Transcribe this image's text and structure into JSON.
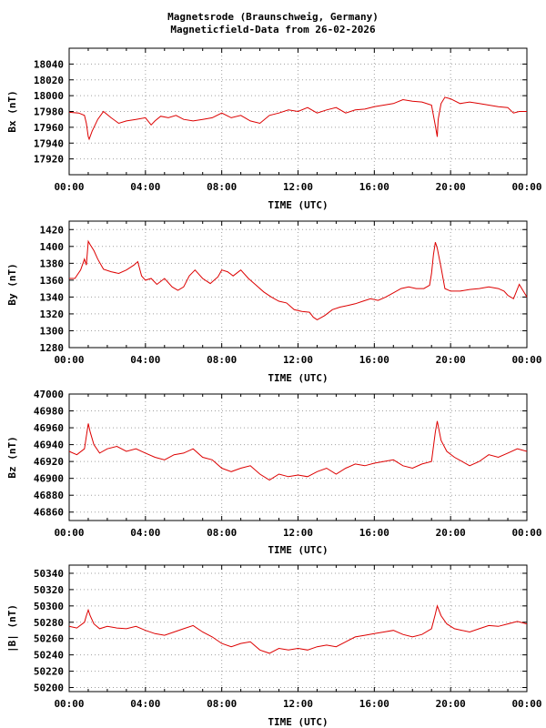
{
  "title_line1": "Magnetsrode (Braunschweig, Germany)",
  "title_line2": "Magneticfield-Data from 26-02-2026",
  "series_color": "#dd0000",
  "chart_data": [
    {
      "type": "line",
      "ylabel": "Bx (nT)",
      "xlabel": "TIME (UTC)",
      "xlim": [
        0,
        24
      ],
      "ylim": [
        17900,
        18060
      ],
      "yticks": [
        17920,
        17940,
        17960,
        17980,
        18000,
        18020,
        18040
      ],
      "xtick_labels": [
        "00:00",
        "04:00",
        "08:00",
        "12:00",
        "16:00",
        "20:00",
        "00:00"
      ],
      "series": [
        {
          "x": [
            0,
            0.5,
            0.8,
            0.9,
            1.0,
            1.05,
            1.2,
            1.5,
            1.8,
            2.2,
            2.6,
            3.0,
            3.5,
            4.0,
            4.3,
            4.5,
            4.8,
            5.2,
            5.6,
            6.0,
            6.5,
            7.0,
            7.5,
            8.0,
            8.5,
            9.0,
            9.5,
            10.0,
            10.5,
            11.0,
            11.5,
            12.0,
            12.5,
            13.0,
            13.5,
            14.0,
            14.5,
            15.0,
            15.5,
            16.0,
            16.5,
            17.0,
            17.5,
            18.0,
            18.5,
            19.0,
            19.2,
            19.3,
            19.35,
            19.5,
            19.7,
            20.0,
            20.5,
            21.0,
            21.5,
            22.0,
            22.5,
            23.0,
            23.3,
            23.6,
            24.0
          ],
          "values": [
            17979,
            17978,
            17975,
            17965,
            17948,
            17945,
            17955,
            17970,
            17980,
            17972,
            17965,
            17968,
            17970,
            17972,
            17963,
            17968,
            17974,
            17972,
            17975,
            17970,
            17968,
            17970,
            17972,
            17978,
            17972,
            17975,
            17968,
            17965,
            17975,
            17978,
            17982,
            17980,
            17985,
            17978,
            17982,
            17985,
            17978,
            17982,
            17983,
            17986,
            17988,
            17990,
            17995,
            17993,
            17992,
            17988,
            17962,
            17948,
            17970,
            17990,
            17998,
            17996,
            17990,
            17992,
            17990,
            17988,
            17986,
            17985,
            17978,
            17980,
            17980
          ]
        }
      ]
    },
    {
      "type": "line",
      "ylabel": "By (nT)",
      "xlabel": "TIME (UTC)",
      "xlim": [
        0,
        24
      ],
      "ylim": [
        1280,
        1430
      ],
      "yticks": [
        1280,
        1300,
        1320,
        1340,
        1360,
        1380,
        1400,
        1420
      ],
      "xtick_labels": [
        "00:00",
        "04:00",
        "08:00",
        "12:00",
        "16:00",
        "20:00",
        "00:00"
      ],
      "series": [
        {
          "x": [
            0,
            0.3,
            0.6,
            0.8,
            0.9,
            1.0,
            1.1,
            1.3,
            1.5,
            1.8,
            2.2,
            2.6,
            3.0,
            3.4,
            3.6,
            3.8,
            4.0,
            4.3,
            4.6,
            5.0,
            5.4,
            5.7,
            6.0,
            6.3,
            6.6,
            7.0,
            7.4,
            7.8,
            8.0,
            8.3,
            8.6,
            9.0,
            9.4,
            9.8,
            10.2,
            10.6,
            11.0,
            11.4,
            11.8,
            12.2,
            12.6,
            12.8,
            13.0,
            13.4,
            13.8,
            14.2,
            14.6,
            15.0,
            15.4,
            15.8,
            16.2,
            16.6,
            17.0,
            17.4,
            17.8,
            18.2,
            18.6,
            18.9,
            19.0,
            19.1,
            19.2,
            19.3,
            19.5,
            19.7,
            20.0,
            20.5,
            21.0,
            21.5,
            22.0,
            22.5,
            22.8,
            23.0,
            23.3,
            23.6,
            24.0
          ],
          "values": [
            1362,
            1362,
            1372,
            1385,
            1378,
            1406,
            1402,
            1395,
            1385,
            1373,
            1370,
            1368,
            1372,
            1378,
            1382,
            1365,
            1360,
            1362,
            1355,
            1362,
            1352,
            1348,
            1352,
            1365,
            1372,
            1362,
            1356,
            1364,
            1372,
            1370,
            1365,
            1372,
            1362,
            1354,
            1346,
            1340,
            1335,
            1333,
            1325,
            1323,
            1322,
            1316,
            1313,
            1318,
            1325,
            1328,
            1330,
            1332,
            1335,
            1338,
            1336,
            1340,
            1345,
            1350,
            1352,
            1350,
            1350,
            1354,
            1368,
            1390,
            1405,
            1398,
            1375,
            1350,
            1347,
            1347,
            1349,
            1350,
            1352,
            1350,
            1347,
            1342,
            1338,
            1355,
            1340
          ]
        }
      ]
    },
    {
      "type": "line",
      "ylabel": "Bz (nT)",
      "xlabel": "TIME (UTC)",
      "xlim": [
        0,
        24
      ],
      "ylim": [
        46850,
        47000
      ],
      "yticks": [
        46860,
        46880,
        46900,
        46920,
        46940,
        46960,
        46980,
        47000
      ],
      "xtick_labels": [
        "00:00",
        "04:00",
        "08:00",
        "12:00",
        "16:00",
        "20:00",
        "00:00"
      ],
      "series": [
        {
          "x": [
            0,
            0.4,
            0.8,
            0.9,
            1.0,
            1.1,
            1.3,
            1.6,
            2.0,
            2.5,
            3.0,
            3.5,
            4.0,
            4.5,
            5.0,
            5.5,
            6.0,
            6.5,
            7.0,
            7.5,
            8.0,
            8.5,
            9.0,
            9.5,
            10.0,
            10.5,
            11.0,
            11.5,
            12.0,
            12.5,
            13.0,
            13.5,
            14.0,
            14.5,
            15.0,
            15.5,
            16.0,
            16.5,
            17.0,
            17.5,
            18.0,
            18.5,
            19.0,
            19.2,
            19.3,
            19.5,
            19.8,
            20.2,
            20.6,
            21.0,
            21.5,
            22.0,
            22.5,
            23.0,
            23.5,
            24.0
          ],
          "values": [
            46932,
            46928,
            46935,
            46950,
            46965,
            46955,
            46940,
            46930,
            46935,
            46938,
            46932,
            46935,
            46930,
            46925,
            46922,
            46928,
            46930,
            46935,
            46925,
            46922,
            46912,
            46908,
            46912,
            46915,
            46905,
            46898,
            46905,
            46902,
            46904,
            46902,
            46908,
            46912,
            46905,
            46912,
            46917,
            46915,
            46918,
            46920,
            46922,
            46915,
            46912,
            46917,
            46920,
            46955,
            46968,
            46945,
            46932,
            46925,
            46920,
            46915,
            46920,
            46928,
            46925,
            46930,
            46935,
            46932
          ]
        }
      ]
    },
    {
      "type": "line",
      "ylabel": "|B| (nT)",
      "xlabel": "TIME (UTC)",
      "xlim": [
        0,
        24
      ],
      "ylim": [
        50195,
        50350
      ],
      "yticks": [
        50200,
        50220,
        50240,
        50260,
        50280,
        50300,
        50320,
        50340
      ],
      "xtick_labels": [
        "00:00",
        "04:00",
        "08:00",
        "12:00",
        "16:00",
        "20:00",
        "00:00"
      ],
      "series": [
        {
          "x": [
            0,
            0.4,
            0.8,
            0.9,
            1.0,
            1.1,
            1.3,
            1.6,
            2.0,
            2.5,
            3.0,
            3.5,
            4.0,
            4.5,
            5.0,
            5.5,
            6.0,
            6.5,
            7.0,
            7.5,
            8.0,
            8.5,
            9.0,
            9.5,
            10.0,
            10.5,
            11.0,
            11.5,
            12.0,
            12.5,
            13.0,
            13.5,
            14.0,
            14.5,
            15.0,
            15.5,
            16.0,
            16.5,
            17.0,
            17.5,
            18.0,
            18.5,
            19.0,
            19.2,
            19.3,
            19.5,
            19.8,
            20.2,
            20.6,
            21.0,
            21.5,
            22.0,
            22.5,
            23.0,
            23.5,
            24.0
          ],
          "values": [
            50275,
            50273,
            50280,
            50288,
            50295,
            50288,
            50278,
            50272,
            50275,
            50273,
            50272,
            50275,
            50270,
            50266,
            50264,
            50268,
            50272,
            50276,
            50268,
            50262,
            50254,
            50250,
            50254,
            50256,
            50246,
            50242,
            50248,
            50246,
            50248,
            50246,
            50250,
            50252,
            50250,
            50256,
            50262,
            50264,
            50266,
            50268,
            50270,
            50265,
            50262,
            50265,
            50272,
            50290,
            50300,
            50288,
            50278,
            50272,
            50270,
            50268,
            50272,
            50276,
            50275,
            50278,
            50281,
            50278
          ]
        }
      ]
    }
  ]
}
